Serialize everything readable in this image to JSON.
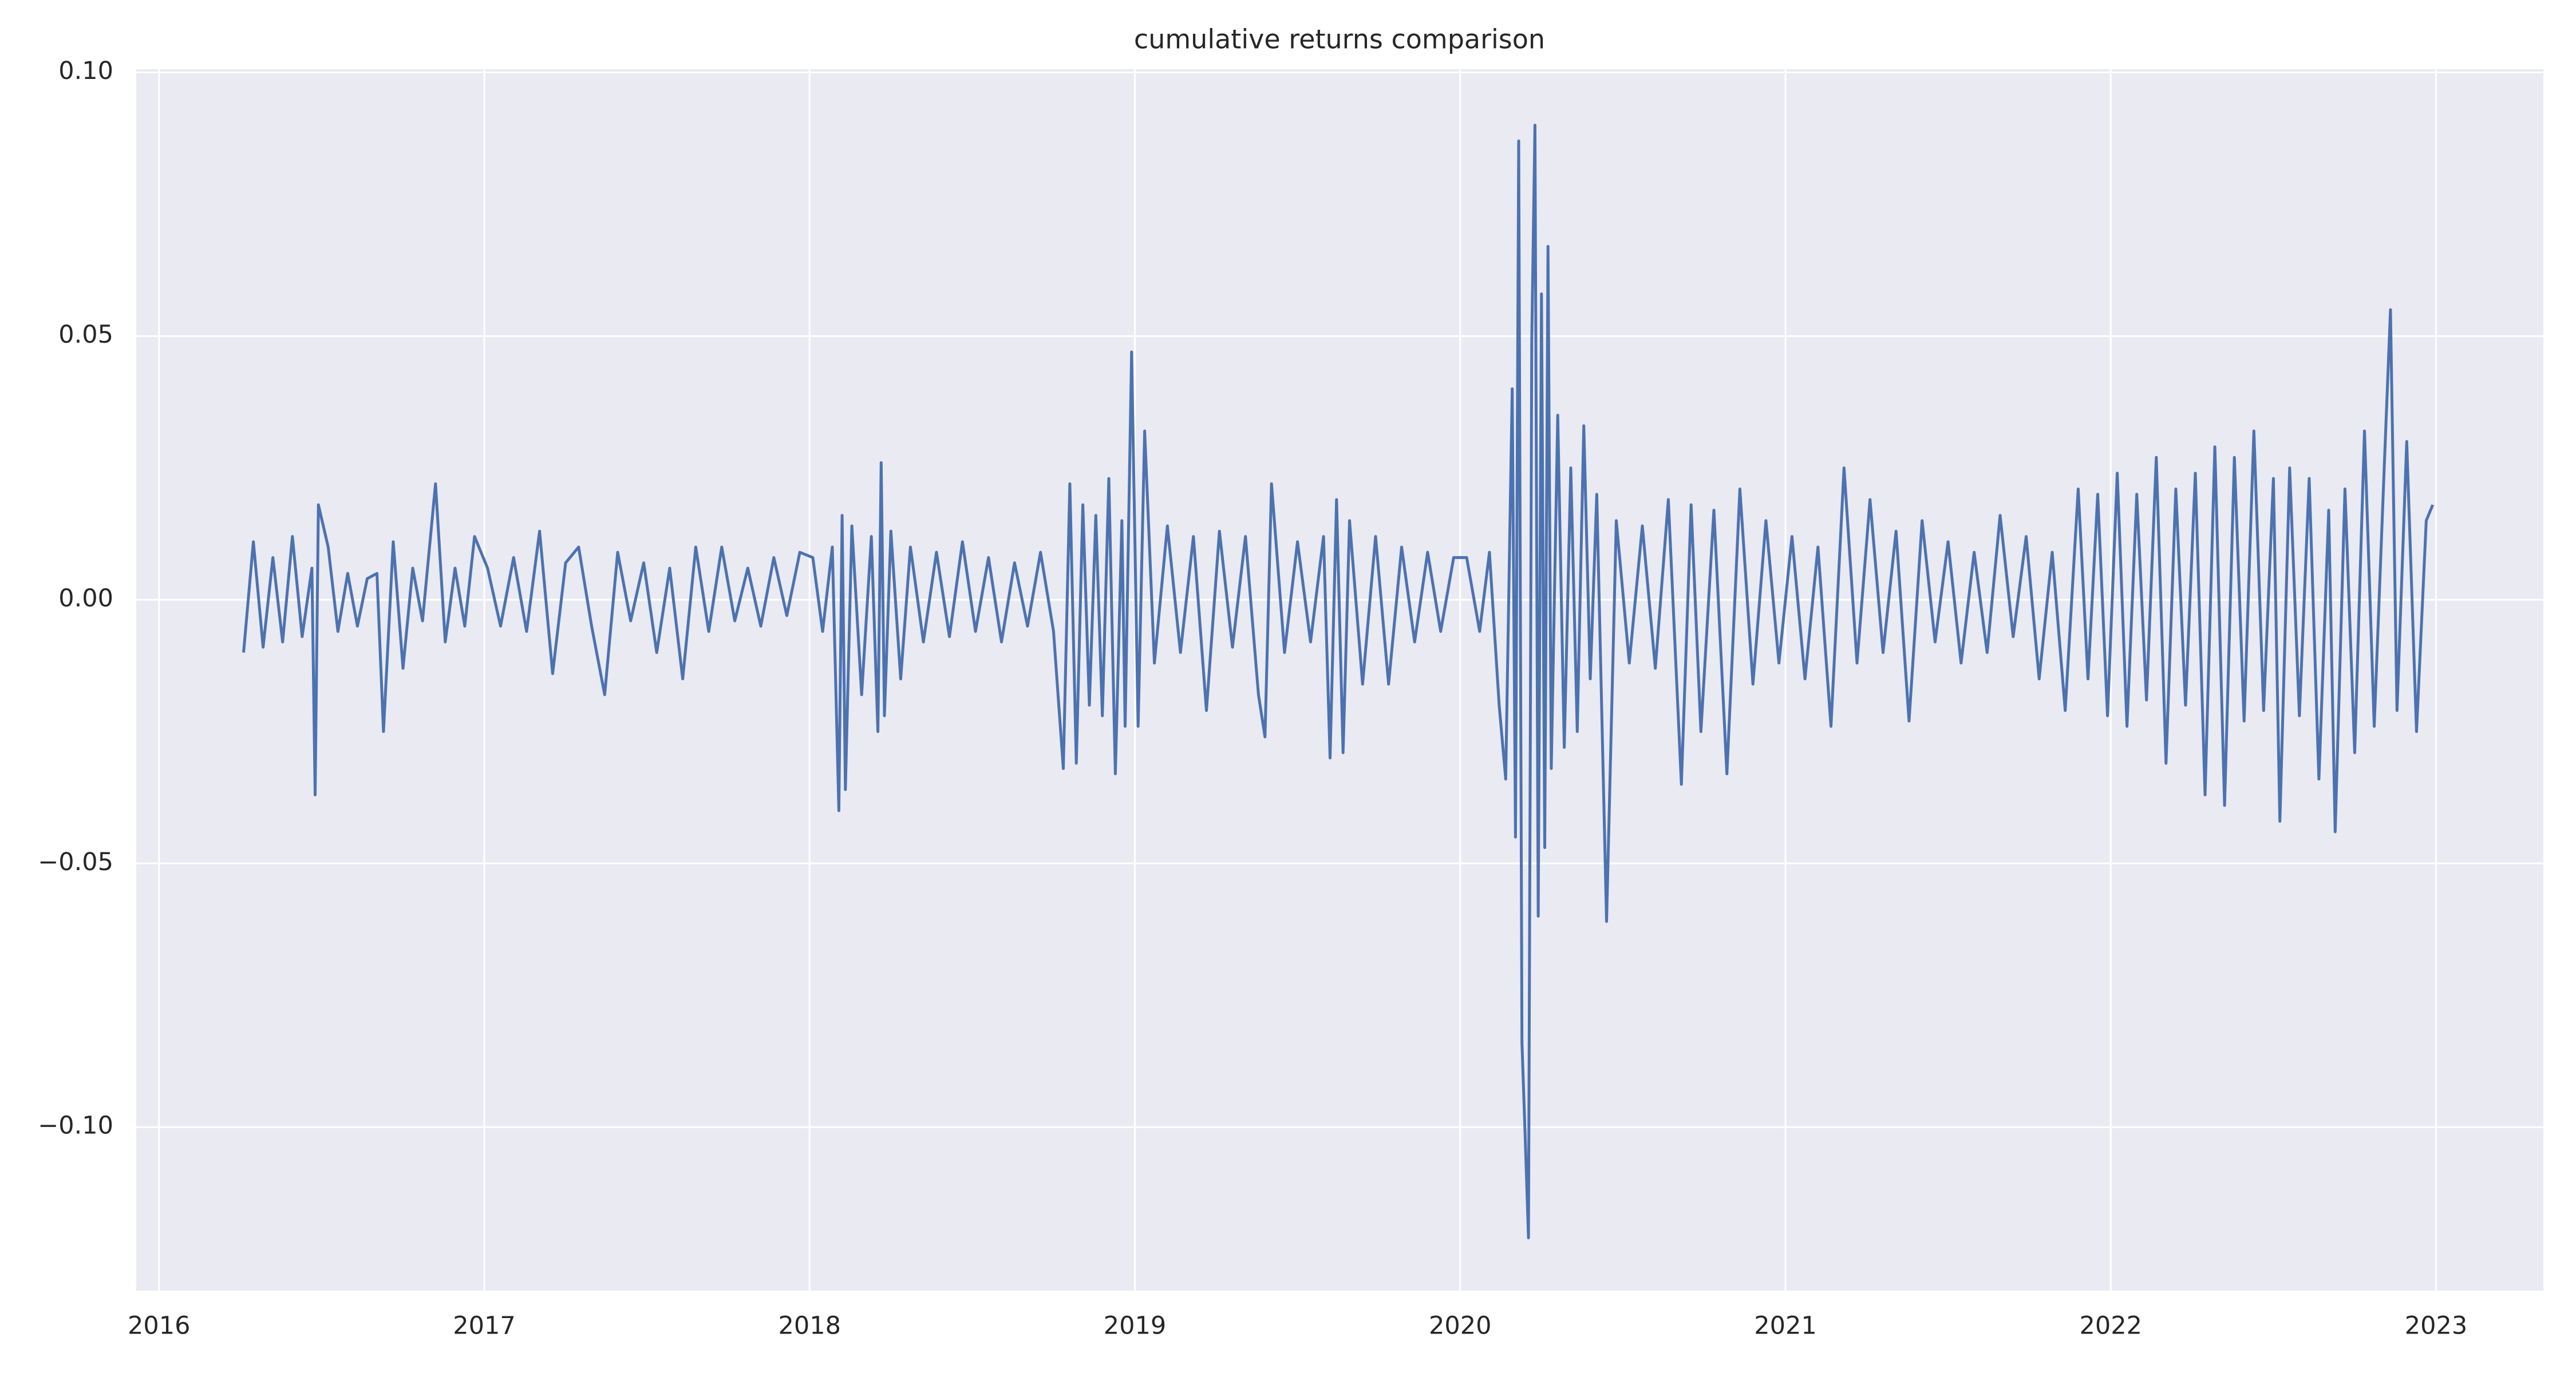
{
  "chart_data": {
    "type": "line",
    "title": "cumulative returns comparison",
    "color": "#4c72b0",
    "grid": true,
    "xlim": [
      2015.93,
      2023.33
    ],
    "xticks": [
      2016,
      2017,
      2018,
      2019,
      2020,
      2021,
      2022,
      2023
    ],
    "ylim": [
      -0.131,
      0.1006
    ],
    "yticks": [
      {
        "value": -0.1,
        "label": "−0.10"
      },
      {
        "value": -0.05,
        "label": "−0.05"
      },
      {
        "value": 0,
        "label": "0.00"
      },
      {
        "value": 0.05,
        "label": "0.05"
      },
      {
        "value": 0.1,
        "label": "0.10"
      }
    ],
    "x": [
      2016.26,
      2016.29,
      2016.32,
      2016.35,
      2016.38,
      2016.41,
      2016.44,
      2016.47,
      2016.48,
      2016.49,
      2016.52,
      2016.55,
      2016.58,
      2016.61,
      2016.64,
      2016.67,
      2016.69,
      2016.72,
      2016.75,
      2016.78,
      2016.81,
      2016.85,
      2016.88,
      2016.91,
      2016.94,
      2016.97,
      2017.01,
      2017.05,
      2017.09,
      2017.13,
      2017.17,
      2017.21,
      2017.25,
      2017.29,
      2017.33,
      2017.37,
      2017.41,
      2017.45,
      2017.49,
      2017.53,
      2017.57,
      2017.61,
      2017.65,
      2017.69,
      2017.73,
      2017.77,
      2017.81,
      2017.85,
      2017.89,
      2017.93,
      2017.97,
      2018.01,
      2018.04,
      2018.07,
      2018.09,
      2018.1,
      2018.11,
      2018.13,
      2018.16,
      2018.19,
      2018.21,
      2018.22,
      2018.23,
      2018.25,
      2018.28,
      2018.31,
      2018.35,
      2018.39,
      2018.43,
      2018.47,
      2018.51,
      2018.55,
      2018.59,
      2018.63,
      2018.67,
      2018.71,
      2018.75,
      2018.78,
      2018.8,
      2018.82,
      2018.84,
      2018.86,
      2018.88,
      2018.9,
      2018.92,
      2018.94,
      2018.96,
      2018.97,
      2018.99,
      2019.01,
      2019.03,
      2019.06,
      2019.1,
      2019.14,
      2019.18,
      2019.22,
      2019.26,
      2019.3,
      2019.34,
      2019.38,
      2019.4,
      2019.42,
      2019.46,
      2019.5,
      2019.54,
      2019.58,
      2019.6,
      2019.62,
      2019.64,
      2019.66,
      2019.7,
      2019.74,
      2019.78,
      2019.82,
      2019.86,
      2019.9,
      2019.94,
      2019.98,
      2020.02,
      2020.06,
      2020.09,
      2020.12,
      2020.14,
      2020.16,
      2020.17,
      2020.18,
      2020.19,
      2020.2,
      2020.21,
      2020.22,
      2020.23,
      2020.24,
      2020.25,
      2020.26,
      2020.27,
      2020.28,
      2020.3,
      2020.32,
      2020.34,
      2020.36,
      2020.38,
      2020.4,
      2020.42,
      2020.45,
      2020.48,
      2020.52,
      2020.56,
      2020.6,
      2020.64,
      2020.68,
      2020.71,
      2020.74,
      2020.78,
      2020.82,
      2020.86,
      2020.9,
      2020.94,
      2020.98,
      2021.02,
      2021.06,
      2021.1,
      2021.14,
      2021.18,
      2021.22,
      2021.26,
      2021.3,
      2021.34,
      2021.38,
      2021.42,
      2021.46,
      2021.5,
      2021.54,
      2021.58,
      2021.62,
      2021.66,
      2021.7,
      2021.74,
      2021.78,
      2021.82,
      2021.86,
      2021.9,
      2021.93,
      2021.96,
      2021.99,
      2022.02,
      2022.05,
      2022.08,
      2022.11,
      2022.14,
      2022.17,
      2022.2,
      2022.23,
      2022.26,
      2022.29,
      2022.32,
      2022.35,
      2022.38,
      2022.41,
      2022.44,
      2022.47,
      2022.5,
      2022.52,
      2022.55,
      2022.58,
      2022.61,
      2022.64,
      2022.67,
      2022.69,
      2022.72,
      2022.75,
      2022.78,
      2022.81,
      2022.84,
      2022.86,
      2022.88,
      2022.91,
      2022.94,
      2022.97,
      2022.99
    ],
    "values": [
      -0.01,
      0.011,
      -0.009,
      0.008,
      -0.008,
      0.012,
      -0.007,
      0.006,
      -0.037,
      0.018,
      0.01,
      -0.006,
      0.005,
      -0.005,
      0.004,
      0.005,
      -0.025,
      0.011,
      -0.013,
      0.006,
      -0.004,
      0.022,
      -0.008,
      0.006,
      -0.005,
      0.012,
      0.006,
      -0.005,
      0.008,
      -0.006,
      0.013,
      -0.014,
      0.007,
      0.01,
      -0.005,
      -0.018,
      0.009,
      -0.004,
      0.007,
      -0.01,
      0.006,
      -0.015,
      0.01,
      -0.006,
      0.01,
      -0.004,
      0.006,
      -0.005,
      0.008,
      -0.003,
      0.009,
      0.008,
      -0.006,
      0.01,
      -0.04,
      0.016,
      -0.036,
      0.014,
      -0.018,
      0.012,
      -0.025,
      0.026,
      -0.022,
      0.013,
      -0.015,
      0.01,
      -0.008,
      0.009,
      -0.007,
      0.011,
      -0.006,
      0.008,
      -0.008,
      0.007,
      -0.005,
      0.009,
      -0.006,
      -0.032,
      0.022,
      -0.031,
      0.018,
      -0.02,
      0.016,
      -0.022,
      0.023,
      -0.033,
      0.015,
      -0.024,
      0.047,
      -0.024,
      0.032,
      -0.012,
      0.014,
      -0.01,
      0.012,
      -0.021,
      0.013,
      -0.009,
      0.012,
      -0.018,
      -0.026,
      0.022,
      -0.01,
      0.011,
      -0.008,
      0.012,
      -0.03,
      0.019,
      -0.029,
      0.015,
      -0.016,
      0.012,
      -0.016,
      0.01,
      -0.008,
      0.009,
      -0.006,
      0.008,
      0.008,
      -0.006,
      0.009,
      -0.02,
      -0.034,
      0.04,
      -0.045,
      0.087,
      -0.084,
      -0.102,
      -0.121,
      0.049,
      0.09,
      -0.06,
      0.058,
      -0.047,
      0.067,
      -0.032,
      0.035,
      -0.028,
      0.025,
      -0.025,
      0.033,
      -0.015,
      0.02,
      -0.061,
      0.015,
      -0.012,
      0.014,
      -0.013,
      0.019,
      -0.035,
      0.018,
      -0.025,
      0.017,
      -0.033,
      0.021,
      -0.016,
      0.015,
      -0.012,
      0.012,
      -0.015,
      0.01,
      -0.024,
      0.025,
      -0.012,
      0.019,
      -0.01,
      0.013,
      -0.023,
      0.015,
      -0.008,
      0.011,
      -0.012,
      0.009,
      -0.01,
      0.016,
      -0.007,
      0.012,
      -0.015,
      0.009,
      -0.021,
      0.021,
      -0.015,
      0.02,
      -0.022,
      0.024,
      -0.024,
      0.02,
      -0.019,
      0.027,
      -0.031,
      0.021,
      -0.02,
      0.024,
      -0.037,
      0.029,
      -0.039,
      0.027,
      -0.023,
      0.032,
      -0.021,
      0.023,
      -0.042,
      0.025,
      -0.022,
      0.023,
      -0.034,
      0.017,
      -0.044,
      0.021,
      -0.029,
      0.032,
      -0.024,
      0.024,
      0.055,
      -0.021,
      0.03,
      -0.025,
      0.015,
      0.018
    ]
  }
}
